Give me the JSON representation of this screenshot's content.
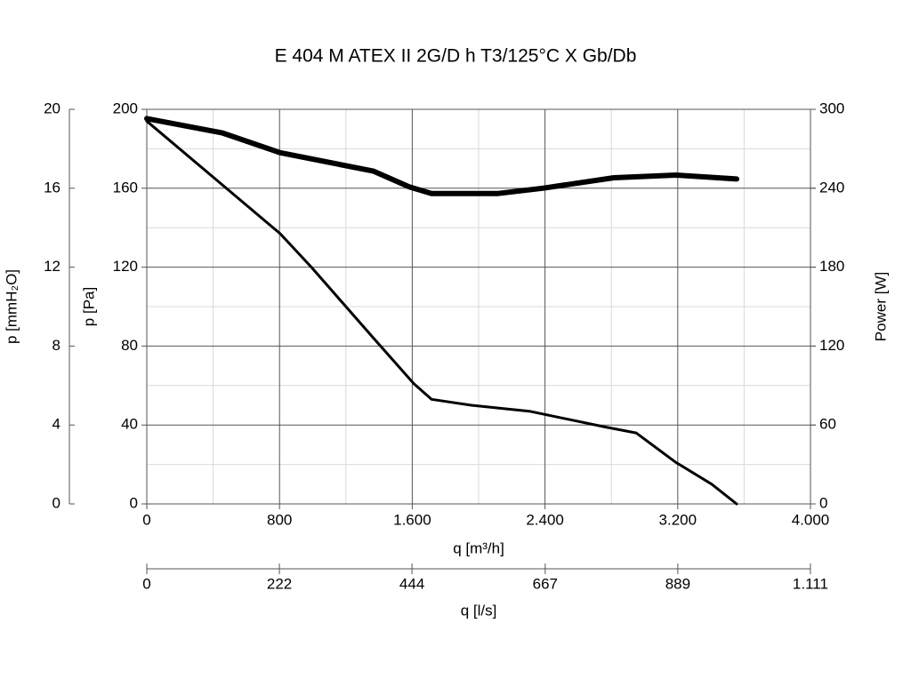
{
  "chart_data": {
    "type": "line",
    "title": "E 404 M ATEX II 2G/D h T3/125°C X Gb/Db",
    "x_label": "q [m³/h]",
    "x2_label": "q [l/s]",
    "y_label": "p [Pa]",
    "y2_label": "Power [W]",
    "y3_label": "p [mmH₂O]",
    "xlim": [
      0,
      4000
    ],
    "xticks": [
      0,
      800,
      {
        "value": 1600,
        "label": "1.600"
      },
      {
        "value": 2400,
        "label": "2.400"
      },
      {
        "value": 3200,
        "label": "3.200"
      },
      {
        "value": 4000,
        "label": "4.000"
      }
    ],
    "x2lim": [
      0,
      1111.1
    ],
    "x2ticks": [
      0,
      222,
      444,
      667,
      889,
      {
        "value": 1111,
        "label": "1.111"
      }
    ],
    "ylim": [
      0,
      200
    ],
    "yticks": [
      0,
      40,
      80,
      120,
      160,
      200
    ],
    "y2lim": [
      0,
      300
    ],
    "y2ticks": [
      0,
      60,
      120,
      180,
      240,
      300
    ],
    "y3lim": [
      0,
      20
    ],
    "y3ticks": [
      0,
      4,
      8,
      12,
      16,
      20
    ],
    "grid": true,
    "series": [
      {
        "color": "#000000",
        "width": 3,
        "axis": "y",
        "x": [
          0,
          804,
          992,
          1367,
          1609,
          1716,
          1957,
          2306,
          2761,
          2949,
          3190,
          3405,
          3555
        ],
        "values": [
          194,
          137,
          120,
          84,
          61,
          53,
          50,
          47,
          39,
          36,
          21,
          10,
          0
        ]
      },
      {
        "color": "#000000",
        "width": 6,
        "axis": "y2",
        "x": [
          0,
          456,
          804,
          1367,
          1582,
          1716,
          2118,
          2386,
          2815,
          3190,
          3555
        ],
        "values": [
          293,
          282,
          267,
          253,
          241,
          236,
          236,
          240,
          248,
          250,
          247
        ]
      }
    ]
  }
}
